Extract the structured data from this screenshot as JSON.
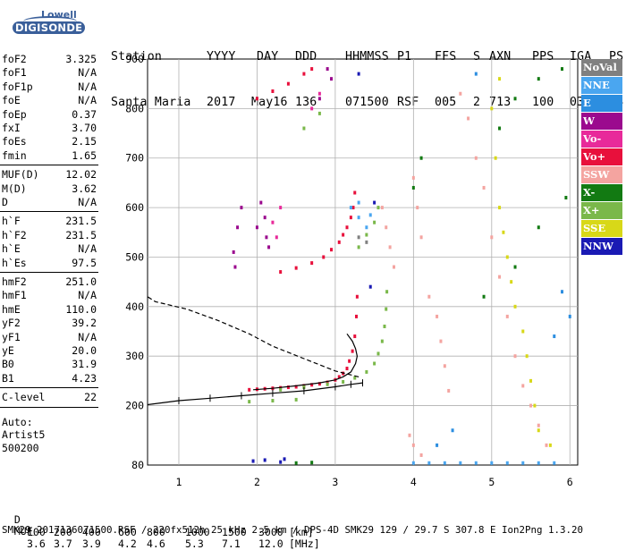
{
  "logo": {
    "brand": "Lowell",
    "product": "DIGISONDE"
  },
  "header": {
    "labels": [
      "Station",
      "YYYY",
      "DAY",
      "DDD",
      "HHMMSS",
      "P1",
      "FFS",
      "S",
      "AXN",
      "PPS",
      "IGA",
      "PS"
    ],
    "values": [
      "Santa Maria",
      "2017",
      "May16",
      "136",
      "071500",
      "RSF",
      "005",
      "2",
      "713",
      "100",
      "03+",
      "34"
    ]
  },
  "params_group1": [
    {
      "name": "foF2",
      "value": "3.325"
    },
    {
      "name": "foF1",
      "value": "N/A"
    },
    {
      "name": "foF1p",
      "value": "N/A"
    },
    {
      "name": "foE",
      "value": "N/A"
    },
    {
      "name": "foEp",
      "value": "0.37"
    },
    {
      "name": "fxI",
      "value": "3.70"
    },
    {
      "name": "foEs",
      "value": "2.15"
    },
    {
      "name": "fmin",
      "value": "1.65"
    }
  ],
  "params_group2": [
    {
      "name": "MUF(D)",
      "value": "12.02"
    },
    {
      "name": "M(D)",
      "value": "3.62"
    },
    {
      "name": "D",
      "value": "N/A"
    }
  ],
  "params_group3": [
    {
      "name": "h`F",
      "value": "231.5"
    },
    {
      "name": "h`F2",
      "value": "231.5"
    },
    {
      "name": "h`E",
      "value": "N/A"
    },
    {
      "name": "h`Es",
      "value": "97.5"
    }
  ],
  "params_group4": [
    {
      "name": "hmF2",
      "value": "251.0"
    },
    {
      "name": "hmF1",
      "value": "N/A"
    },
    {
      "name": "hmE",
      "value": "110.0"
    },
    {
      "name": "yF2",
      "value": "39.2"
    },
    {
      "name": "yF1",
      "value": "N/A"
    },
    {
      "name": "yE",
      "value": "20.0"
    },
    {
      "name": "B0",
      "value": "31.9"
    },
    {
      "name": "B1",
      "value": "4.23"
    }
  ],
  "params_group5": [
    {
      "name": "C-level",
      "value": "22"
    }
  ],
  "auto": {
    "line1": "Auto:",
    "line2": "Artist5",
    "line3": "500200"
  },
  "legend": [
    {
      "label": "NoVal",
      "color": "#808080"
    },
    {
      "label": "NNE",
      "color": "#4aa6f0"
    },
    {
      "label": "E",
      "color": "#2c8ee0"
    },
    {
      "label": "W",
      "color": "#9b0a8e"
    },
    {
      "label": "Vo-",
      "color": "#e82a9a"
    },
    {
      "label": "Vo+",
      "color": "#e8103c"
    },
    {
      "label": "SSW",
      "color": "#f4a4a0"
    },
    {
      "label": "X-",
      "color": "#127a12"
    },
    {
      "label": "X+",
      "color": "#7ab84a"
    },
    {
      "label": "SSE",
      "color": "#d8d818"
    },
    {
      "label": "NNW",
      "color": "#1a1ab4"
    }
  ],
  "footer": {
    "d_label": "D",
    "d_values": [
      "100",
      "200",
      "400",
      "600",
      "800",
      "1000",
      "1500",
      "3000",
      "[km]"
    ],
    "muf_label": "MUF",
    "muf_values": [
      "3.6",
      "3.7",
      "3.9",
      "4.2",
      "4.6",
      "5.3",
      "7.1",
      "12.0",
      "[MHz]"
    ],
    "info": "SMK29_2017136071500.RSF / 220fx512h 25 kHz 2.5 km / DPS-4D SMK29 129 / 29.7 S 307.8 E Ion2Png 1.3.20"
  },
  "chart_data": {
    "type": "scatter",
    "xlim": [
      0.6,
      6.1
    ],
    "ylim": [
      80,
      900
    ],
    "xticks": [
      "1",
      "2",
      "3",
      "4",
      "5",
      "6"
    ],
    "yticks": [
      "80",
      "200",
      "300",
      "400",
      "500",
      "600",
      "700",
      "800",
      "900"
    ],
    "grid": true,
    "legend_position": "right",
    "series": [
      {
        "name": "Vo+",
        "color": "#e8103c",
        "points": [
          [
            1.9,
            232
          ],
          [
            2.0,
            233
          ],
          [
            2.1,
            234
          ],
          [
            2.2,
            235
          ],
          [
            2.3,
            236
          ],
          [
            2.4,
            237
          ],
          [
            2.5,
            238
          ],
          [
            2.6,
            240
          ],
          [
            2.7,
            242
          ],
          [
            2.8,
            244
          ],
          [
            2.9,
            247
          ],
          [
            3.0,
            252
          ],
          [
            3.05,
            258
          ],
          [
            3.1,
            265
          ],
          [
            3.15,
            275
          ],
          [
            3.18,
            290
          ],
          [
            3.22,
            310
          ],
          [
            3.25,
            340
          ],
          [
            3.27,
            380
          ],
          [
            3.28,
            420
          ],
          [
            2.3,
            470
          ],
          [
            2.5,
            478
          ],
          [
            2.7,
            488
          ],
          [
            2.85,
            500
          ],
          [
            2.95,
            515
          ],
          [
            3.05,
            530
          ],
          [
            3.1,
            545
          ],
          [
            3.15,
            560
          ],
          [
            3.2,
            580
          ],
          [
            3.23,
            600
          ],
          [
            3.25,
            630
          ],
          [
            2.0,
            820
          ],
          [
            2.2,
            835
          ],
          [
            2.4,
            850
          ],
          [
            2.6,
            870
          ],
          [
            2.7,
            880
          ]
        ]
      },
      {
        "name": "X+",
        "color": "#7ab84a",
        "points": [
          [
            2.3,
            232
          ],
          [
            2.6,
            237
          ],
          [
            2.9,
            243
          ],
          [
            3.1,
            248
          ],
          [
            3.25,
            256
          ],
          [
            3.4,
            268
          ],
          [
            3.5,
            285
          ],
          [
            3.55,
            305
          ],
          [
            3.6,
            330
          ],
          [
            3.63,
            360
          ],
          [
            3.65,
            395
          ],
          [
            3.66,
            430
          ],
          [
            3.3,
            520
          ],
          [
            3.4,
            545
          ],
          [
            3.5,
            570
          ],
          [
            3.55,
            600
          ],
          [
            2.6,
            760
          ],
          [
            2.8,
            790
          ],
          [
            1.9,
            208
          ],
          [
            2.2,
            210
          ],
          [
            2.5,
            212
          ]
        ]
      },
      {
        "name": "X-",
        "color": "#127a12",
        "points": [
          [
            4.0,
            640
          ],
          [
            4.1,
            700
          ],
          [
            5.3,
            820
          ],
          [
            5.6,
            860
          ],
          [
            5.9,
            880
          ],
          [
            5.95,
            620
          ],
          [
            5.6,
            560
          ],
          [
            5.3,
            480
          ],
          [
            4.9,
            420
          ],
          [
            5.1,
            760
          ],
          [
            2.5,
            84
          ],
          [
            2.7,
            85
          ]
        ]
      },
      {
        "name": "SSW",
        "color": "#f4a4a0",
        "points": [
          [
            3.6,
            600
          ],
          [
            3.65,
            560
          ],
          [
            3.7,
            520
          ],
          [
            3.75,
            480
          ],
          [
            4.0,
            660
          ],
          [
            4.05,
            600
          ],
          [
            4.1,
            540
          ],
          [
            4.2,
            420
          ],
          [
            4.3,
            380
          ],
          [
            4.35,
            330
          ],
          [
            4.4,
            280
          ],
          [
            4.45,
            230
          ],
          [
            4.6,
            830
          ],
          [
            4.7,
            780
          ],
          [
            4.8,
            700
          ],
          [
            4.9,
            640
          ],
          [
            5.0,
            540
          ],
          [
            5.1,
            460
          ],
          [
            5.2,
            380
          ],
          [
            5.3,
            300
          ],
          [
            5.4,
            240
          ],
          [
            5.5,
            200
          ],
          [
            5.6,
            160
          ],
          [
            5.7,
            120
          ],
          [
            3.95,
            140
          ],
          [
            4.0,
            120
          ],
          [
            4.1,
            100
          ]
        ]
      },
      {
        "name": "SSE",
        "color": "#d8d818",
        "points": [
          [
            5.1,
            860
          ],
          [
            5.0,
            800
          ],
          [
            5.05,
            700
          ],
          [
            5.1,
            600
          ],
          [
            5.15,
            550
          ],
          [
            5.2,
            500
          ],
          [
            5.25,
            450
          ],
          [
            5.3,
            400
          ],
          [
            5.4,
            350
          ],
          [
            5.45,
            300
          ],
          [
            5.5,
            250
          ],
          [
            5.55,
            200
          ],
          [
            5.6,
            150
          ],
          [
            5.75,
            120
          ]
        ]
      },
      {
        "name": "NNE",
        "color": "#4aa6f0",
        "points": [
          [
            3.2,
            600
          ],
          [
            3.3,
            580
          ],
          [
            3.4,
            560
          ],
          [
            3.3,
            610
          ],
          [
            3.45,
            585
          ],
          [
            4.0,
            84
          ],
          [
            4.2,
            84
          ],
          [
            4.4,
            84
          ],
          [
            4.6,
            84
          ],
          [
            4.8,
            84
          ],
          [
            5.0,
            84
          ],
          [
            5.2,
            84
          ],
          [
            5.4,
            84
          ],
          [
            5.6,
            84
          ],
          [
            5.8,
            84
          ]
        ]
      },
      {
        "name": "E",
        "color": "#2c8ee0",
        "points": [
          [
            5.8,
            340
          ],
          [
            6.0,
            380
          ],
          [
            5.9,
            430
          ],
          [
            4.8,
            870
          ],
          [
            4.3,
            120
          ],
          [
            4.5,
            150
          ]
        ]
      },
      {
        "name": "W",
        "color": "#9b0a8e",
        "points": [
          [
            1.7,
            510
          ],
          [
            1.75,
            560
          ],
          [
            1.8,
            600
          ],
          [
            1.72,
            480
          ],
          [
            2.0,
            560
          ],
          [
            2.05,
            610
          ],
          [
            2.1,
            580
          ],
          [
            2.12,
            540
          ],
          [
            2.15,
            520
          ],
          [
            2.9,
            880
          ],
          [
            2.95,
            860
          ],
          [
            2.8,
            820
          ]
        ]
      },
      {
        "name": "Vo-",
        "color": "#e82a9a",
        "points": [
          [
            2.2,
            570
          ],
          [
            2.3,
            600
          ],
          [
            2.25,
            540
          ],
          [
            2.7,
            800
          ],
          [
            2.8,
            830
          ]
        ]
      },
      {
        "name": "NNW",
        "color": "#1a1ab4",
        "points": [
          [
            3.45,
            440
          ],
          [
            3.5,
            610
          ],
          [
            3.3,
            870
          ],
          [
            1.95,
            88
          ],
          [
            2.1,
            90
          ],
          [
            2.3,
            86
          ],
          [
            2.35,
            92
          ]
        ]
      },
      {
        "name": "NoVal",
        "color": "#808080",
        "points": [
          [
            3.3,
            540
          ],
          [
            3.4,
            530
          ]
        ]
      }
    ],
    "profile_curve": [
      [
        1.95,
        232
      ],
      [
        2.2,
        235
      ],
      [
        2.5,
        240
      ],
      [
        2.8,
        246
      ],
      [
        3.0,
        252
      ],
      [
        3.1,
        258
      ],
      [
        3.2,
        268
      ],
      [
        3.26,
        285
      ],
      [
        3.28,
        300
      ],
      [
        3.26,
        315
      ],
      [
        3.22,
        330
      ],
      [
        3.15,
        345
      ]
    ],
    "extrapolated_curve": [
      [
        3.3,
        258
      ],
      [
        3.0,
        270
      ],
      [
        2.6,
        295
      ],
      [
        2.2,
        320
      ],
      [
        1.9,
        345
      ],
      [
        1.5,
        372
      ],
      [
        1.1,
        395
      ],
      [
        0.7,
        410
      ],
      [
        0.6,
        420
      ]
    ],
    "muf_curve": [
      [
        0.6,
        202
      ],
      [
        1.0,
        210
      ],
      [
        1.4,
        215
      ],
      [
        1.8,
        220
      ],
      [
        2.2,
        225
      ],
      [
        2.6,
        230
      ],
      [
        3.0,
        238
      ],
      [
        3.2,
        243
      ],
      [
        3.35,
        246
      ]
    ]
  }
}
